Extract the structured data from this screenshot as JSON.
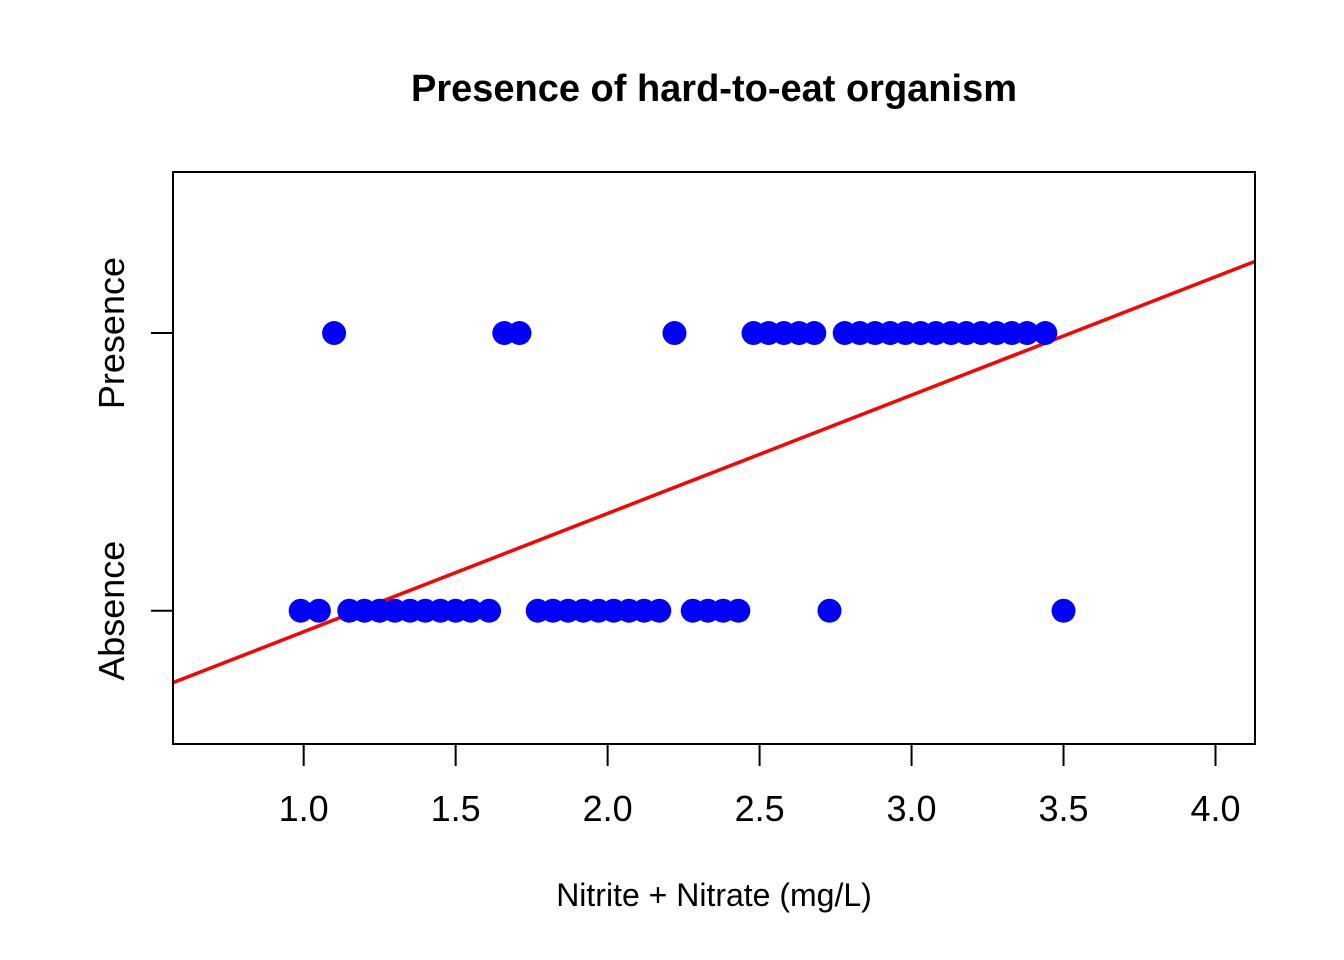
{
  "chart_data": {
    "type": "scatter",
    "title": "Presence of hard-to-eat organism",
    "xlabel": "Nitrite + Nitrate (mg/L)",
    "ylabel": "",
    "xlim": [
      0.57,
      4.13
    ],
    "ylim": [
      -0.48,
      1.58
    ],
    "x_ticks": [
      1.0,
      1.5,
      2.0,
      2.5,
      3.0,
      3.5,
      4.0
    ],
    "x_tick_labels": [
      "1.0",
      "1.5",
      "2.0",
      "2.5",
      "3.0",
      "3.5",
      "4.0"
    ],
    "y_categories": [
      {
        "label": "Absence",
        "value": 0
      },
      {
        "label": "Presence",
        "value": 1
      }
    ],
    "grid": false,
    "colors": {
      "points": "#0000ff",
      "fit_line": "#ff0000",
      "axes": "#000000"
    },
    "series": [
      {
        "type": "scatter",
        "x": [
          1.1,
          1.66,
          1.71,
          2.22,
          2.48,
          2.53,
          2.58,
          2.63,
          2.68,
          2.78,
          2.83,
          2.88,
          2.93,
          2.98,
          3.03,
          3.08,
          3.13,
          3.18,
          3.23,
          3.28,
          3.33,
          3.38,
          3.44,
          0.99,
          1.05,
          1.15,
          1.2,
          1.25,
          1.3,
          1.35,
          1.4,
          1.45,
          1.5,
          1.55,
          1.61,
          1.77,
          1.82,
          1.87,
          1.92,
          1.97,
          2.02,
          2.07,
          2.12,
          2.17,
          2.28,
          2.33,
          2.38,
          2.43,
          2.73,
          3.5
        ],
        "y": [
          1,
          1,
          1,
          1,
          1,
          1,
          1,
          1,
          1,
          1,
          1,
          1,
          1,
          1,
          1,
          1,
          1,
          1,
          1,
          1,
          1,
          1,
          1,
          0,
          0,
          0,
          0,
          0,
          0,
          0,
          0,
          0,
          0,
          0,
          0,
          0,
          0,
          0,
          0,
          0,
          0,
          0,
          0,
          0,
          0,
          0,
          0,
          0,
          0,
          0
        ]
      },
      {
        "type": "line",
        "x": [
          0.57,
          4.13
        ],
        "y": [
          -0.259,
          1.258
        ]
      }
    ]
  }
}
